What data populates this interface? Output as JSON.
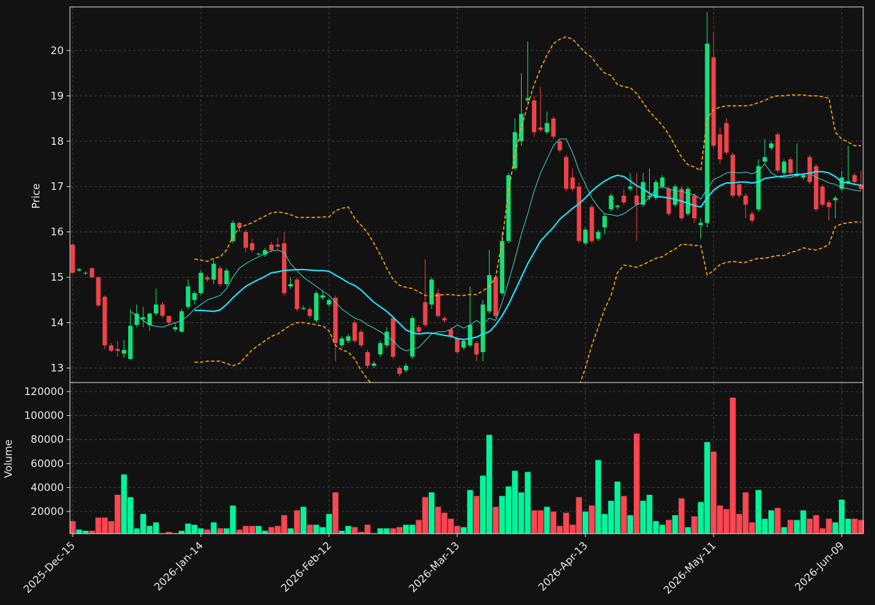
{
  "chart_data": {
    "type": "candlestick",
    "xlim": [
      -0.43,
      123.35
    ],
    "xticks": [
      {
        "value": 0,
        "label": "2025-Dec-15"
      },
      {
        "value": 20,
        "label": "2026-Jan-14"
      },
      {
        "value": 40,
        "label": "2026-Feb-12"
      },
      {
        "value": 60,
        "label": "2026-Mar-13"
      },
      {
        "value": 80,
        "label": "2026-Apr-13"
      },
      {
        "value": 100,
        "label": "2026-May-11"
      },
      {
        "value": 120,
        "label": "2026-Jun-09"
      }
    ],
    "ylabel": "Price",
    "ylim": [
      12.68,
      20.96
    ],
    "yticks": [
      13,
      14,
      15,
      16,
      17,
      18,
      19,
      20
    ],
    "grid": true,
    "up_color": "#12e07a",
    "down_color": "#ef4249",
    "open": [
      15.72,
      15.15,
      15.1,
      15.2,
      15.0,
      14.57,
      13.5,
      13.42,
      13.32,
      13.2,
      13.95,
      14.08,
      13.95,
      14.2,
      14.4,
      14.15,
      13.85,
      13.8,
      14.35,
      14.5,
      14.65,
      15.0,
      14.95,
      15.2,
      14.85,
      15.8,
      16.2,
      16.0,
      15.75,
      15.52,
      15.5,
      15.72,
      15.72,
      15.75,
      14.8,
      14.95,
      14.3,
      14.3,
      14.05,
      14.55,
      14.4,
      14.55,
      13.5,
      13.6,
      14.0,
      13.8,
      13.35,
      13.05,
      13.3,
      13.5,
      14.1,
      13.0,
      12.95,
      13.25,
      13.9,
      14.45,
      14.4,
      14.65,
      14.1,
      13.85,
      13.65,
      13.45,
      13.5,
      13.55,
      13.35,
      14.25,
      15.0,
      14.65,
      15.8,
      17.4,
      18.0,
      18.9,
      18.9,
      18.3,
      18.2,
      18.5,
      18.0,
      17.65,
      17.2,
      17.0,
      15.75,
      16.55,
      15.85,
      16.1,
      16.5,
      16.55,
      16.8,
      16.95,
      16.8,
      16.6,
      16.76,
      16.75,
      17.0,
      16.95,
      16.6,
      16.95,
      16.4,
      16.8,
      16.15,
      16.2,
      19.85,
      18.15,
      18.4,
      17.7,
      17.05,
      16.8,
      16.4,
      16.5,
      17.55,
      17.85,
      18.15,
      17.3,
      17.6,
      17.23,
      17.2,
      17.65,
      17.45,
      17.0,
      16.65,
      16.7,
      16.95,
      17.08,
      17.25,
      17.05
    ],
    "high": [
      15.75,
      15.2,
      15.13,
      15.22,
      15.02,
      14.6,
      13.55,
      13.6,
      13.62,
      14.3,
      14.4,
      14.35,
      14.22,
      14.75,
      14.45,
      14.15,
      14.0,
      14.3,
      14.95,
      14.7,
      15.15,
      15.05,
      15.4,
      15.25,
      15.2,
      16.25,
      16.22,
      16.05,
      15.85,
      15.55,
      15.65,
      15.78,
      15.88,
      16.0,
      15.0,
      15.0,
      14.38,
      14.35,
      14.7,
      14.7,
      14.55,
      14.6,
      13.7,
      13.75,
      14.05,
      13.85,
      13.4,
      13.15,
      13.6,
      13.9,
      14.15,
      13.05,
      13.1,
      14.15,
      13.95,
      15.4,
      15.0,
      14.75,
      14.15,
      13.9,
      13.7,
      13.65,
      14.8,
      13.6,
      14.5,
      15.6,
      15.05,
      16.0,
      17.3,
      18.5,
      19.5,
      20.2,
      19.0,
      19.2,
      18.65,
      18.55,
      18.05,
      17.7,
      17.4,
      17.1,
      16.1,
      16.6,
      16.05,
      16.4,
      16.85,
      16.6,
      16.95,
      17.3,
      17.3,
      17.3,
      17.4,
      17.15,
      17.25,
      17.0,
      17.05,
      17.0,
      17.0,
      16.85,
      16.3,
      20.85,
      20.4,
      18.3,
      18.5,
      17.75,
      17.1,
      16.85,
      16.45,
      17.6,
      18.05,
      18.0,
      18.2,
      17.6,
      17.65,
      17.95,
      17.3,
      17.7,
      17.5,
      17.05,
      16.7,
      16.8,
      17.35,
      17.9,
      17.3,
      17.35
    ],
    "low": [
      15.08,
      15.12,
      15.05,
      14.98,
      14.35,
      13.42,
      13.35,
      13.25,
      13.22,
      13.18,
      13.9,
      13.9,
      13.82,
      14.15,
      14.1,
      13.95,
      13.8,
      13.78,
      14.3,
      14.4,
      14.6,
      14.9,
      14.85,
      14.8,
      14.8,
      15.75,
      16.0,
      15.55,
      15.55,
      15.48,
      15.45,
      15.55,
      15.6,
      14.6,
      14.75,
      14.25,
      14.28,
      14.1,
      14.0,
      14.5,
      14.35,
      13.15,
      13.45,
      13.55,
      13.55,
      13.45,
      13.0,
      13.0,
      13.25,
      13.45,
      13.2,
      12.82,
      12.9,
      13.2,
      13.75,
      13.9,
      14.3,
      14.1,
      14.0,
      13.65,
      13.3,
      13.4,
      13.45,
      13.15,
      13.15,
      14.2,
      14.1,
      14.6,
      15.75,
      17.35,
      17.9,
      18.85,
      18.1,
      18.2,
      18.15,
      18.05,
      17.75,
      16.9,
      16.9,
      15.75,
      15.7,
      15.75,
      15.8,
      15.95,
      16.45,
      16.5,
      16.6,
      16.9,
      15.8,
      16.55,
      16.7,
      16.7,
      16.95,
      16.35,
      16.55,
      16.25,
      16.35,
      16.2,
      15.85,
      16.1,
      17.85,
      17.5,
      17.7,
      16.75,
      16.75,
      16.3,
      16.2,
      16.45,
      17.5,
      17.8,
      17.3,
      17.25,
      17.25,
      17.2,
      17.15,
      17.05,
      16.45,
      16.55,
      16.25,
      16.3,
      16.9,
      17.05,
      17.05,
      16.9
    ],
    "close": [
      15.1,
      15.18,
      15.1,
      15.0,
      14.38,
      13.5,
      13.38,
      13.38,
      13.4,
      13.93,
      14.2,
      14.12,
      14.2,
      14.4,
      14.15,
      14.0,
      13.9,
      14.25,
      14.8,
      14.65,
      15.1,
      14.95,
      15.3,
      14.85,
      15.15,
      16.2,
      16.1,
      15.65,
      15.6,
      15.52,
      15.6,
      15.6,
      15.68,
      14.65,
      14.85,
      14.3,
      14.32,
      14.15,
      14.65,
      14.6,
      14.5,
      13.55,
      13.65,
      13.7,
      13.6,
      13.5,
      13.05,
      13.1,
      13.55,
      13.8,
      13.25,
      12.87,
      13.05,
      14.1,
      13.8,
      13.95,
      14.95,
      14.15,
      14.05,
      13.7,
      13.35,
      13.6,
      13.95,
      13.3,
      14.4,
      15.05,
      14.15,
      15.8,
      17.25,
      18.2,
      18.6,
      18.95,
      18.2,
      18.25,
      18.4,
      18.1,
      17.8,
      16.95,
      16.95,
      15.8,
      16.05,
      15.8,
      16.0,
      16.35,
      16.8,
      16.58,
      16.65,
      17.0,
      16.6,
      17.1,
      16.8,
      17.1,
      17.2,
      16.4,
      17.0,
      16.3,
      16.95,
      16.3,
      16.2,
      20.15,
      17.9,
      17.6,
      17.75,
      16.8,
      16.8,
      16.6,
      16.25,
      17.45,
      17.65,
      17.95,
      17.35,
      17.55,
      17.3,
      17.27,
      17.25,
      17.1,
      16.5,
      16.6,
      16.55,
      16.75,
      17.2,
      17.12,
      17.1,
      16.95
    ],
    "overlays": [
      {
        "color": "#3fd8cc",
        "width": 1,
        "dash": false,
        "values": [
          null,
          null,
          null,
          null,
          null,
          null,
          null,
          null,
          null,
          14.25,
          14.15,
          14.05,
          13.95,
          13.92,
          13.9,
          13.95,
          14.0,
          14.05,
          14.15,
          14.3,
          14.4,
          14.5,
          14.55,
          14.6,
          14.75,
          15.0,
          15.2,
          15.3,
          15.38,
          15.45,
          15.52,
          15.58,
          15.6,
          15.55,
          15.3,
          15.15,
          15.0,
          14.9,
          14.8,
          14.7,
          14.6,
          14.45,
          14.3,
          14.2,
          14.1,
          14.05,
          13.95,
          13.88,
          13.8,
          13.7,
          13.6,
          13.45,
          13.38,
          13.42,
          13.45,
          13.6,
          13.75,
          13.8,
          13.8,
          13.85,
          13.95,
          13.88,
          13.95,
          14.05,
          13.95,
          14.1,
          14.05,
          14.45,
          14.9,
          15.4,
          15.95,
          16.4,
          16.9,
          17.3,
          17.6,
          17.9,
          18.05,
          18.05,
          17.75,
          17.35,
          17.05,
          16.75,
          16.55,
          16.4,
          16.38,
          16.35,
          16.4,
          16.5,
          16.6,
          16.65,
          16.75,
          16.95,
          17.0,
          16.95,
          16.9,
          16.9,
          16.85,
          16.82,
          16.72,
          16.95,
          17.15,
          17.22,
          17.3,
          17.32,
          17.3,
          17.32,
          17.28,
          17.35,
          17.5,
          17.3,
          17.22,
          17.2,
          17.2,
          17.25,
          17.28,
          17.3,
          17.2,
          17.15,
          17.08,
          17.05,
          16.98,
          16.95,
          16.92,
          16.9
        ]
      },
      {
        "color": "#1ee6ff",
        "width": 2,
        "dash": false,
        "values": [
          null,
          null,
          null,
          null,
          null,
          null,
          null,
          null,
          null,
          null,
          null,
          null,
          null,
          null,
          null,
          null,
          null,
          null,
          null,
          14.27,
          14.27,
          14.26,
          14.25,
          14.28,
          14.4,
          14.55,
          14.68,
          14.8,
          14.88,
          14.95,
          15.02,
          15.1,
          15.12,
          15.15,
          15.16,
          15.17,
          15.17,
          15.16,
          15.15,
          15.15,
          15.13,
          15.05,
          14.97,
          14.88,
          14.82,
          14.72,
          14.58,
          14.45,
          14.35,
          14.25,
          14.12,
          13.98,
          13.84,
          13.78,
          13.75,
          13.77,
          13.77,
          13.75,
          13.72,
          13.7,
          13.65,
          13.63,
          13.65,
          13.68,
          13.75,
          13.8,
          13.95,
          14.15,
          14.4,
          14.7,
          15.0,
          15.3,
          15.55,
          15.8,
          15.95,
          16.1,
          16.28,
          16.4,
          16.52,
          16.62,
          16.75,
          16.9,
          17.02,
          17.12,
          17.2,
          17.25,
          17.22,
          17.12,
          17.02,
          16.95,
          16.85,
          16.78,
          16.77,
          16.75,
          16.72,
          16.68,
          16.63,
          16.58,
          16.55,
          16.75,
          16.92,
          17.02,
          17.08,
          17.08,
          17.1,
          17.1,
          17.08,
          17.1,
          17.18,
          17.2,
          17.22,
          17.23,
          17.25,
          17.27,
          17.27,
          17.3,
          17.33,
          17.33,
          17.3,
          17.22,
          17.1,
          17.08,
          17.05,
          17.03
        ]
      },
      {
        "color": "#ffa500",
        "width": 1.6,
        "dash": true,
        "values": [
          null,
          null,
          null,
          null,
          null,
          null,
          null,
          null,
          null,
          null,
          null,
          null,
          null,
          null,
          null,
          null,
          null,
          null,
          null,
          15.4,
          15.38,
          15.35,
          15.42,
          15.45,
          15.6,
          15.9,
          16.1,
          16.15,
          16.2,
          16.28,
          16.35,
          16.42,
          16.44,
          16.42,
          16.38,
          16.32,
          16.32,
          16.32,
          16.32,
          16.33,
          16.33,
          16.47,
          16.52,
          16.55,
          16.3,
          16.15,
          15.98,
          15.75,
          15.5,
          15.2,
          14.95,
          14.82,
          14.78,
          14.75,
          14.68,
          14.6,
          14.58,
          14.6,
          14.62,
          14.62,
          14.6,
          14.6,
          14.62,
          14.62,
          14.7,
          14.8,
          15.0,
          15.8,
          16.9,
          17.7,
          18.3,
          18.8,
          19.25,
          19.6,
          19.9,
          20.15,
          20.25,
          20.3,
          20.25,
          20.1,
          19.95,
          19.85,
          19.65,
          19.5,
          19.45,
          19.25,
          19.2,
          19.18,
          19.05,
          18.85,
          18.65,
          18.5,
          18.35,
          18.15,
          17.9,
          17.65,
          17.48,
          17.43,
          17.35,
          18.5,
          18.7,
          18.75,
          18.78,
          18.78,
          18.78,
          18.78,
          18.8,
          18.85,
          18.9,
          18.97,
          19.0,
          19.0,
          19.02,
          19.02,
          19.02,
          19.0,
          19.0,
          18.98,
          18.95,
          18.2,
          18.05,
          17.98,
          17.9,
          17.9
        ]
      },
      {
        "color": "#ffa500",
        "width": 1.6,
        "dash": true,
        "values": [
          null,
          null,
          null,
          null,
          null,
          null,
          null,
          null,
          null,
          null,
          null,
          null,
          null,
          null,
          null,
          null,
          null,
          null,
          null,
          13.13,
          13.13,
          13.15,
          13.15,
          13.15,
          13.1,
          13.05,
          13.1,
          13.25,
          13.4,
          13.5,
          13.6,
          13.7,
          13.75,
          13.85,
          13.95,
          14.0,
          14.0,
          13.98,
          13.95,
          13.93,
          13.82,
          13.5,
          13.4,
          13.35,
          13.2,
          12.95,
          12.75,
          12.6,
          12.55,
          12.5,
          12.5,
          12.55,
          12.6,
          12.62,
          12.58,
          12.55,
          12.62,
          12.63,
          12.65,
          12.62,
          12.65,
          12.66,
          12.62,
          12.55,
          12.5,
          12.42,
          12.3,
          12.0,
          11.4,
          10.9,
          10.6,
          10.5,
          10.5,
          10.6,
          10.9,
          11.3,
          11.8,
          12.2,
          12.3,
          12.6,
          13.0,
          13.5,
          13.9,
          14.3,
          14.6,
          15.1,
          15.27,
          15.25,
          15.22,
          15.28,
          15.35,
          15.42,
          15.45,
          15.55,
          15.62,
          15.73,
          15.72,
          15.7,
          15.7,
          15.05,
          15.15,
          15.28,
          15.33,
          15.35,
          15.33,
          15.33,
          15.38,
          15.42,
          15.42,
          15.45,
          15.48,
          15.48,
          15.55,
          15.58,
          15.65,
          15.62,
          15.6,
          15.65,
          15.72,
          16.12,
          16.18,
          16.2,
          16.22,
          16.22
        ]
      }
    ],
    "volume": {
      "label": "Volume",
      "ylim": [
        1500,
        127500
      ],
      "yticks": [
        20000,
        40000,
        60000,
        80000,
        100000,
        120000
      ],
      "up_color": "#00f59b",
      "down_color": "#ff4550",
      "values": [
        12000,
        5000,
        4000,
        4000,
        15000,
        15000,
        12000,
        34000,
        51000,
        32000,
        6000,
        18000,
        8000,
        11000,
        2000,
        3000,
        2000,
        4000,
        10000,
        9000,
        6000,
        5000,
        11000,
        6000,
        6000,
        25000,
        5000,
        8000,
        8000,
        8000,
        4000,
        7000,
        8000,
        17000,
        6000,
        21000,
        24000,
        9000,
        9000,
        7000,
        18000,
        36000,
        4000,
        8000,
        7000,
        3000,
        9000,
        2000,
        6000,
        6000,
        6000,
        7000,
        9000,
        9000,
        13000,
        32000,
        36000,
        24000,
        19000,
        14000,
        8000,
        7000,
        38000,
        33000,
        50000,
        84000,
        24000,
        33000,
        41000,
        54000,
        36000,
        53000,
        21000,
        21000,
        24000,
        20000,
        8000,
        19000,
        9000,
        32000,
        20000,
        25000,
        63000,
        18000,
        29000,
        45000,
        33000,
        17000,
        85000,
        29000,
        34000,
        12000,
        9000,
        13000,
        17000,
        31000,
        7000,
        16000,
        28000,
        78000,
        70000,
        25000,
        22000,
        115000,
        18000,
        36000,
        11000,
        38000,
        14000,
        21000,
        23000,
        7000,
        13000,
        13000,
        21000,
        14000,
        17000,
        6000,
        14000,
        11000,
        30000,
        14000,
        14000,
        13000
      ]
    }
  }
}
